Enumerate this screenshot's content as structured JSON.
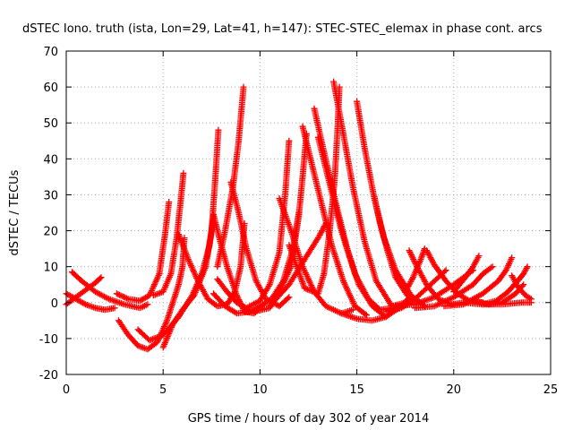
{
  "chart_data": {
    "type": "scatter",
    "title": "dSTEC Iono. truth (ista, Lon=29, Lat=41, h=147): STEC-STEC_elemax in phase cont. arcs",
    "xlabel": "GPS time / hours of day 302 of year 2014",
    "ylabel": "dSTEC  / TECUs",
    "xlim": [
      0,
      25
    ],
    "ylim": [
      -20,
      70
    ],
    "xticks": [
      0,
      5,
      10,
      15,
      20,
      25
    ],
    "yticks": [
      -20,
      -10,
      0,
      10,
      20,
      30,
      40,
      50,
      60,
      70
    ],
    "grid": true,
    "marker": "+",
    "marker_color": "#ff0000",
    "series": [
      {
        "values": [
          [
            0.0,
            2.5
          ],
          [
            0.5,
            1.0
          ],
          [
            1.0,
            -0.5
          ],
          [
            1.5,
            -1.5
          ],
          [
            2.0,
            -2.0
          ],
          [
            2.5,
            -1.5
          ]
        ]
      },
      {
        "values": [
          [
            0.0,
            -0.5
          ],
          [
            0.5,
            1.5
          ],
          [
            1.0,
            3.5
          ],
          [
            1.5,
            5.5
          ],
          [
            1.8,
            7.0
          ]
        ]
      },
      {
        "values": [
          [
            0.3,
            8.5
          ],
          [
            0.8,
            6.0
          ],
          [
            1.5,
            3.0
          ],
          [
            2.2,
            1.0
          ],
          [
            3.0,
            -0.5
          ],
          [
            3.8,
            -1.5
          ],
          [
            4.2,
            -0.5
          ]
        ]
      },
      {
        "values": [
          [
            2.6,
            2.5
          ],
          [
            3.2,
            1.0
          ],
          [
            3.8,
            0.5
          ],
          [
            4.3,
            2.0
          ],
          [
            4.8,
            8.0
          ],
          [
            5.1,
            19.0
          ],
          [
            5.3,
            28.0
          ]
        ]
      },
      {
        "values": [
          [
            2.7,
            -5.0
          ],
          [
            3.2,
            -9.0
          ],
          [
            3.7,
            -12.0
          ],
          [
            4.2,
            -13.0
          ],
          [
            4.7,
            -11.0
          ],
          [
            5.2,
            -5.0
          ],
          [
            5.8,
            5.0
          ],
          [
            6.0,
            10.0
          ],
          [
            6.1,
            18.0
          ]
        ]
      },
      {
        "values": [
          [
            3.7,
            -7.5
          ],
          [
            4.3,
            -10.5
          ],
          [
            5.0,
            -9.0
          ],
          [
            5.8,
            -4.0
          ],
          [
            6.5,
            2.0
          ],
          [
            7.0,
            8.0
          ],
          [
            7.4,
            16.0
          ],
          [
            7.6,
            24.0
          ]
        ]
      },
      {
        "values": [
          [
            5.0,
            -12.5
          ],
          [
            5.5,
            -6.0
          ],
          [
            6.0,
            -2.0
          ],
          [
            6.6,
            2.0
          ],
          [
            7.2,
            10.0
          ],
          [
            7.5,
            20.0
          ],
          [
            7.7,
            35.0
          ],
          [
            7.85,
            48.0
          ]
        ]
      },
      {
        "values": [
          [
            4.5,
            2.0
          ],
          [
            5.0,
            3.0
          ],
          [
            5.4,
            8.0
          ],
          [
            5.7,
            18.0
          ],
          [
            5.9,
            28.0
          ],
          [
            6.05,
            36.0
          ]
        ]
      },
      {
        "values": [
          [
            5.8,
            19.0
          ],
          [
            6.3,
            12.0
          ],
          [
            6.8,
            6.0
          ],
          [
            7.3,
            1.0
          ],
          [
            7.8,
            -1.0
          ],
          [
            8.3,
            -0.5
          ],
          [
            8.7,
            3.0
          ],
          [
            9.0,
            10.0
          ],
          [
            9.2,
            22.0
          ]
        ]
      },
      {
        "values": [
          [
            7.6,
            24.5
          ],
          [
            7.9,
            18.0
          ],
          [
            8.3,
            10.0
          ],
          [
            8.8,
            2.0
          ],
          [
            9.2,
            -2.5
          ],
          [
            9.7,
            -3.0
          ],
          [
            10.3,
            0.0
          ]
        ]
      },
      {
        "values": [
          [
            7.8,
            10.0
          ],
          [
            8.2,
            20.0
          ],
          [
            8.6,
            32.0
          ],
          [
            8.9,
            45.0
          ],
          [
            9.15,
            60.0
          ]
        ]
      },
      {
        "values": [
          [
            8.5,
            33.5
          ],
          [
            8.9,
            25.0
          ],
          [
            9.3,
            15.0
          ],
          [
            9.8,
            6.0
          ],
          [
            10.3,
            1.0
          ],
          [
            11.0,
            -1.0
          ],
          [
            11.5,
            1.5
          ]
        ]
      },
      {
        "values": [
          [
            7.8,
            6.5
          ],
          [
            8.3,
            3.0
          ],
          [
            8.8,
            0.0
          ],
          [
            9.3,
            -1.5
          ],
          [
            10.0,
            0.5
          ],
          [
            10.5,
            5.0
          ],
          [
            11.0,
            14.0
          ],
          [
            11.3,
            30.0
          ],
          [
            11.5,
            45.0
          ]
        ]
      },
      {
        "values": [
          [
            7.6,
            2.5
          ],
          [
            8.2,
            -1.0
          ],
          [
            8.8,
            -3.0
          ],
          [
            9.5,
            -2.5
          ],
          [
            10.0,
            -1.0
          ],
          [
            10.6,
            1.0
          ],
          [
            11.2,
            6.0
          ],
          [
            11.7,
            15.0
          ],
          [
            12.0,
            25.0
          ]
        ]
      },
      {
        "values": [
          [
            9.7,
            -2.5
          ],
          [
            10.5,
            -1.5
          ],
          [
            11.0,
            3.0
          ],
          [
            11.6,
            10.0
          ],
          [
            12.0,
            24.0
          ],
          [
            12.2,
            35.0
          ],
          [
            12.4,
            47.0
          ]
        ]
      },
      {
        "values": [
          [
            11.0,
            29.0
          ],
          [
            11.6,
            20.0
          ],
          [
            12.2,
            10.0
          ],
          [
            12.8,
            3.0
          ],
          [
            13.4,
            -1.0
          ],
          [
            14.2,
            -3.0
          ],
          [
            14.8,
            -2.0
          ]
        ]
      },
      {
        "values": [
          [
            12.2,
            49.0
          ],
          [
            12.7,
            38.0
          ],
          [
            13.2,
            27.0
          ],
          [
            13.7,
            16.0
          ],
          [
            14.3,
            6.0
          ],
          [
            14.9,
            -1.0
          ],
          [
            15.5,
            -3.5
          ]
        ]
      },
      {
        "values": [
          [
            11.5,
            16.0
          ],
          [
            12.3,
            4.0
          ],
          [
            13.0,
            2.5
          ],
          [
            13.3,
            8.0
          ],
          [
            13.6,
            20.0
          ],
          [
            13.85,
            34.0
          ],
          [
            14.0,
            48.0
          ],
          [
            14.1,
            60.0
          ]
        ]
      },
      {
        "values": [
          [
            12.8,
            54.0
          ],
          [
            13.3,
            42.0
          ],
          [
            13.9,
            28.0
          ],
          [
            14.5,
            15.0
          ],
          [
            15.1,
            5.0
          ],
          [
            15.8,
            -1.0
          ],
          [
            16.5,
            -4.0
          ]
        ]
      },
      {
        "values": [
          [
            13.0,
            46.0
          ],
          [
            13.6,
            33.0
          ],
          [
            14.2,
            20.0
          ],
          [
            14.9,
            8.0
          ],
          [
            15.6,
            1.0
          ],
          [
            16.2,
            -2.0
          ],
          [
            16.8,
            -1.5
          ]
        ]
      },
      {
        "values": [
          [
            13.8,
            61.5
          ],
          [
            14.3,
            47.0
          ],
          [
            14.8,
            32.0
          ],
          [
            15.4,
            17.0
          ],
          [
            16.0,
            6.0
          ],
          [
            16.8,
            -1.0
          ],
          [
            17.5,
            0.0
          ]
        ]
      },
      {
        "values": [
          [
            15.0,
            56.0
          ],
          [
            15.4,
            43.0
          ],
          [
            15.9,
            29.0
          ],
          [
            16.4,
            18.0
          ],
          [
            17.0,
            9.0
          ],
          [
            17.8,
            2.0
          ],
          [
            18.5,
            -1.0
          ]
        ]
      },
      {
        "values": [
          [
            10.5,
            -1.0
          ],
          [
            11.5,
            5.0
          ],
          [
            12.3,
            12.0
          ],
          [
            13.0,
            18.0
          ],
          [
            13.4,
            22.0
          ]
        ]
      },
      {
        "values": [
          [
            14.2,
            -3.0
          ],
          [
            15.0,
            -4.5
          ],
          [
            15.8,
            -5.0
          ],
          [
            16.5,
            -4.0
          ],
          [
            17.3,
            -1.0
          ],
          [
            17.8,
            2.0
          ]
        ]
      },
      {
        "values": [
          [
            15.9,
            29.5
          ],
          [
            16.2,
            22.0
          ],
          [
            16.6,
            14.0
          ],
          [
            17.0,
            7.0
          ],
          [
            17.6,
            2.0
          ],
          [
            18.3,
            0.0
          ]
        ]
      },
      {
        "values": [
          [
            17.7,
            14.5
          ],
          [
            18.1,
            10.0
          ],
          [
            18.6,
            5.0
          ],
          [
            19.2,
            1.0
          ],
          [
            19.9,
            -0.5
          ],
          [
            20.5,
            0.0
          ]
        ]
      },
      {
        "values": [
          [
            18.6,
            14.5
          ],
          [
            19.0,
            10.5
          ],
          [
            19.6,
            6.0
          ],
          [
            20.2,
            2.5
          ],
          [
            20.8,
            0.5
          ],
          [
            21.5,
            0.0
          ]
        ]
      },
      {
        "values": [
          [
            17.5,
            3.0
          ],
          [
            17.9,
            7.0
          ],
          [
            18.3,
            12.0
          ],
          [
            18.5,
            15.0
          ]
        ]
      },
      {
        "values": [
          [
            16.5,
            -2.5
          ],
          [
            17.3,
            -1.5
          ],
          [
            18.0,
            1.0
          ],
          [
            18.6,
            4.0
          ],
          [
            19.2,
            7.0
          ],
          [
            19.6,
            9.0
          ]
        ]
      },
      {
        "values": [
          [
            17.0,
            -1.0
          ],
          [
            18.0,
            -0.5
          ],
          [
            19.0,
            1.5
          ],
          [
            20.0,
            5.0
          ],
          [
            20.5,
            7.0
          ],
          [
            21.0,
            9.0
          ]
        ]
      },
      {
        "values": [
          [
            18.0,
            -1.5
          ],
          [
            19.0,
            -1.0
          ],
          [
            20.0,
            1.5
          ],
          [
            21.0,
            5.0
          ],
          [
            21.5,
            8.0
          ],
          [
            22.0,
            10.0
          ]
        ]
      },
      {
        "values": [
          [
            19.5,
            -1.0
          ],
          [
            20.5,
            -0.5
          ],
          [
            21.5,
            2.5
          ],
          [
            22.3,
            6.0
          ],
          [
            22.7,
            9.0
          ],
          [
            23.0,
            12.5
          ]
        ]
      },
      {
        "values": [
          [
            20.0,
            3.0
          ],
          [
            20.6,
            7.0
          ],
          [
            21.0,
            10.0
          ],
          [
            21.3,
            13.0
          ]
        ]
      },
      {
        "values": [
          [
            21.5,
            -0.5
          ],
          [
            22.2,
            0.5
          ],
          [
            22.8,
            3.0
          ],
          [
            23.3,
            6.0
          ],
          [
            23.6,
            8.0
          ],
          [
            23.8,
            10.0
          ]
        ]
      },
      {
        "values": [
          [
            21.0,
            0.5
          ],
          [
            21.8,
            -0.5
          ],
          [
            22.5,
            0.0
          ],
          [
            23.2,
            2.5
          ],
          [
            23.6,
            5.0
          ]
        ]
      },
      {
        "values": [
          [
            23.0,
            7.5
          ],
          [
            23.3,
            4.5
          ],
          [
            23.7,
            2.0
          ],
          [
            24.0,
            1.0
          ]
        ]
      },
      {
        "values": [
          [
            20.5,
            0.0
          ],
          [
            21.5,
            -0.5
          ],
          [
            22.5,
            -0.5
          ],
          [
            23.5,
            0.0
          ],
          [
            24.0,
            0.0
          ]
        ]
      }
    ]
  }
}
